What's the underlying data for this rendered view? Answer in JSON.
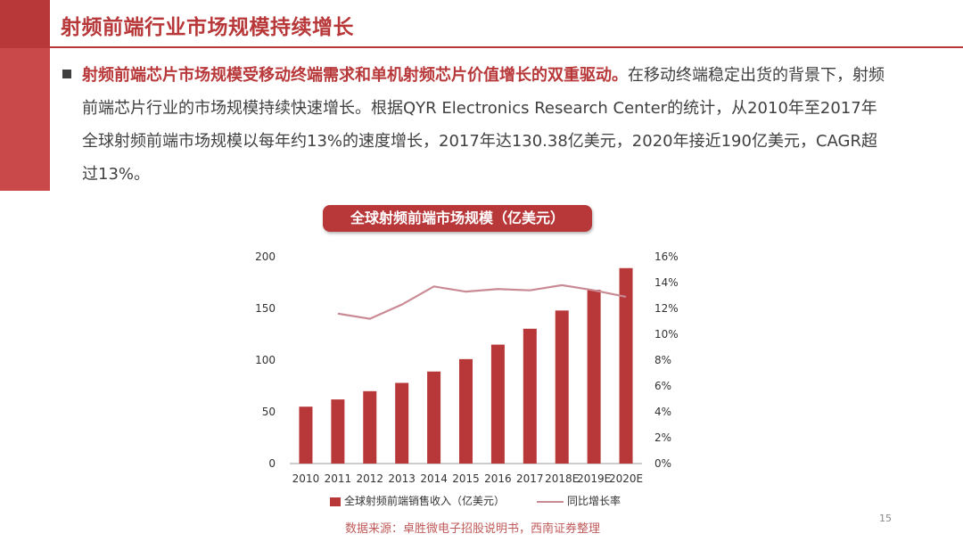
{
  "slide": {
    "title": "射频前端行业市场规模持续增长",
    "lead": "射频前端芯片市场规模受移动终端需求和单机射频芯片价值增长的双重驱动。",
    "body": "在移动终端稳定出货的背景下，射频前端芯片行业的市场规模持续快速增长。根据QYR Electronics Research Center的统计，从2010年至2017年全球射频前端市场规模以每年约13%的速度增长，2017年达130.38亿美元，2020年接近190亿美元，CAGR超过13%。",
    "source": "数据来源：卓胜微电子招股说明书，西南证券整理",
    "page_number": "15"
  },
  "chart_data": {
    "type": "bar",
    "title": "全球射频前端市场规模（亿美元）",
    "categories": [
      "2010",
      "2011",
      "2012",
      "2013",
      "2014",
      "2015",
      "2016",
      "2017",
      "2018E",
      "2019E",
      "2020E"
    ],
    "series": [
      {
        "name": "全球射频前端销售收入（亿美元）",
        "type": "bar",
        "axis": "left",
        "values": [
          55,
          62,
          70,
          78,
          89,
          101,
          115,
          130.38,
          148,
          168,
          189
        ]
      },
      {
        "name": "同比增长率",
        "type": "line",
        "axis": "right",
        "values": [
          null,
          11.6,
          11.2,
          12.3,
          13.7,
          13.3,
          13.5,
          13.4,
          13.8,
          13.4,
          12.9
        ]
      }
    ],
    "ylim": [
      0,
      200
    ],
    "y_ticks": [
      "0",
      "50",
      "100",
      "150",
      "200"
    ],
    "y2lim": [
      0,
      16
    ],
    "y2_ticks": [
      "0%",
      "2%",
      "4%",
      "6%",
      "8%",
      "10%",
      "12%",
      "14%",
      "16%"
    ],
    "colors": {
      "bar": "#b8383a",
      "line": "#c98a95"
    },
    "legend_position": "bottom"
  }
}
